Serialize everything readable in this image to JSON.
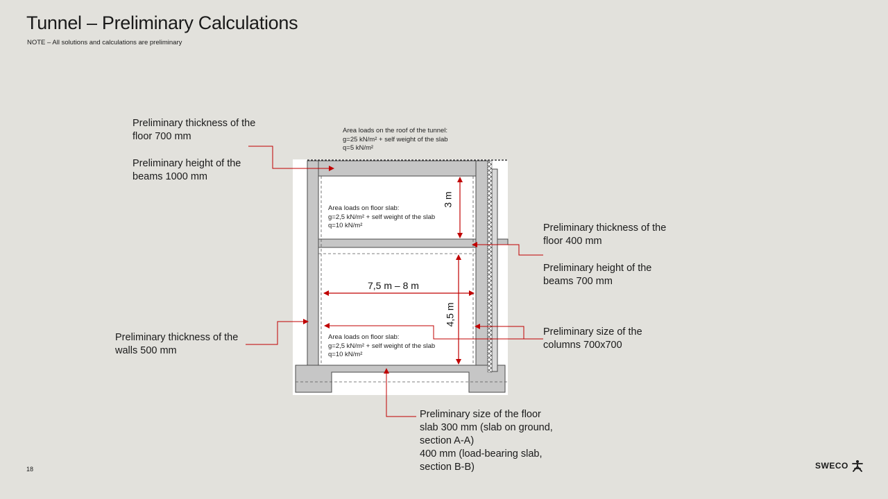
{
  "header": {
    "title": "Tunnel – Preliminary Calculations",
    "subtitle": "NOTE – All solutions and calculations are preliminary"
  },
  "callouts": {
    "roof_floor_thickness": "Preliminary thickness of the floor 700 mm",
    "roof_beams_height": "Preliminary height of the beams 1000 mm",
    "mid_floor_thickness": "Preliminary thickness of the floor 400 mm",
    "mid_beams_height": "Preliminary height of the beams 700 mm",
    "columns_size": "Preliminary size of the columns 700x700",
    "walls_thickness": "Preliminary thickness of the walls 500 mm",
    "floor_slab_line1": "Preliminary size of the floor slab 300 mm (slab on ground, section A-A)",
    "floor_slab_line2": "400 mm (load-bearing slab, section B-B)"
  },
  "loads": {
    "roof": {
      "heading": "Area loads on the roof of the tunnel:",
      "g": "g=25 kN/m² + self weight of the slab",
      "q": "q=5 kN/m²"
    },
    "upper_floor": {
      "heading": "Area loads on floor slab:",
      "g": "g=2,5 kN/m² + self weight of the slab",
      "q": "q=10 kN/m²"
    },
    "lower_floor": {
      "heading": "Area loads on floor slab:",
      "g": "g=2,5 kN/m² + self weight of the slab",
      "q": "q=10 kN/m²"
    }
  },
  "dimensions": {
    "upper_height": "3 m",
    "lower_height": "4,5 m",
    "width": "7,5 m – 8 m"
  },
  "footer": {
    "page_number": "18",
    "logo_text": "SWECO"
  },
  "colors": {
    "background": "#e2e1dc",
    "structure": "#c6c6c6",
    "leader": "#c00000"
  }
}
